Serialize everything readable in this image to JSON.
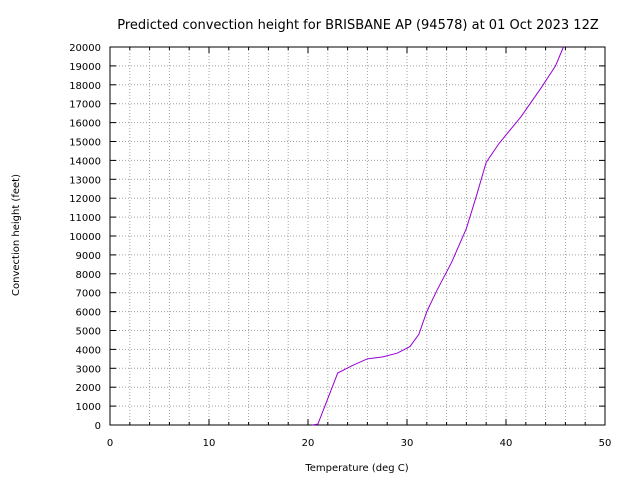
{
  "chart_data": {
    "type": "line",
    "title": "Predicted convection height for BRISBANE AP (94578) at 01 Oct 2023 12Z",
    "xlabel": "Temperature (deg C)",
    "ylabel": "Convection height (feet)",
    "xlim": [
      0,
      50
    ],
    "ylim": [
      0,
      20000
    ],
    "xticks": [
      0,
      10,
      20,
      30,
      40,
      50
    ],
    "yticks": [
      0,
      1000,
      2000,
      3000,
      4000,
      5000,
      6000,
      7000,
      8000,
      9000,
      10000,
      11000,
      12000,
      13000,
      14000,
      15000,
      16000,
      17000,
      18000,
      19000,
      20000
    ],
    "xtick_labels": [
      "0",
      "10",
      "20",
      "30",
      "40",
      "50"
    ],
    "ytick_labels": [
      "0",
      "1000",
      "2000",
      "3000",
      "4000",
      "5000",
      "6000",
      "7000",
      "8000",
      "9000",
      "10000",
      "11000",
      "12000",
      "13000",
      "14000",
      "15000",
      "16000",
      "17000",
      "18000",
      "19000",
      "20000"
    ],
    "grid": true,
    "series": [
      {
        "color": "#9400d3",
        "points": [
          [
            20.4,
            0
          ],
          [
            21.0,
            50
          ],
          [
            22.0,
            1400
          ],
          [
            23.0,
            2750
          ],
          [
            24.5,
            3150
          ],
          [
            26.0,
            3500
          ],
          [
            27.5,
            3600
          ],
          [
            29.0,
            3800
          ],
          [
            30.3,
            4150
          ],
          [
            31.2,
            4800
          ],
          [
            32.0,
            6000
          ],
          [
            33.0,
            7100
          ],
          [
            34.5,
            8600
          ],
          [
            36.0,
            10400
          ],
          [
            37.0,
            12100
          ],
          [
            38.0,
            13900
          ],
          [
            39.3,
            14900
          ],
          [
            41.5,
            16300
          ],
          [
            43.5,
            17800
          ],
          [
            45.0,
            19000
          ],
          [
            45.8,
            20000
          ]
        ]
      }
    ]
  }
}
